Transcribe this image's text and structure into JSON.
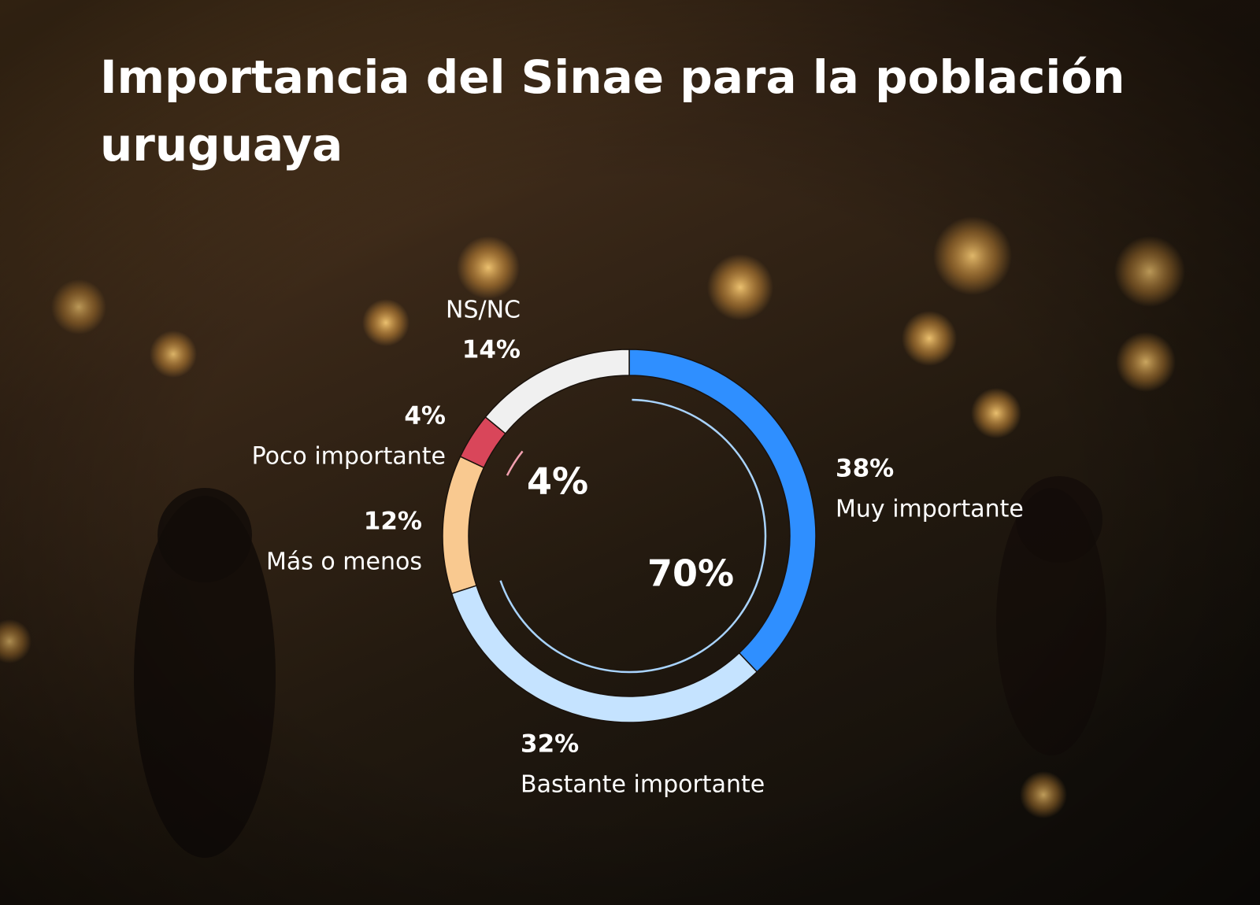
{
  "chart_data": {
    "type": "donut",
    "title": "Importancia del Sinae para la población uruguaya",
    "categories": [
      "Muy importante",
      "Bastante importante",
      "Más o menos",
      "Poco importante",
      "NS/NC"
    ],
    "values": [
      38,
      32,
      12,
      4,
      14
    ],
    "value_labels": [
      "38%",
      "32%",
      "12%",
      "4%",
      "14%"
    ],
    "colors": [
      "#2f8fff",
      "#c5e3ff",
      "#f9c990",
      "#d9465a",
      "#f0f0f0"
    ],
    "summary_arcs": [
      {
        "value": 70,
        "label": "70%",
        "color": "#a9d4ff",
        "from": "Muy importante"
      },
      {
        "value": 4,
        "label": "4%",
        "color": "#f2a0b0",
        "from": "Poco importante"
      }
    ]
  }
}
